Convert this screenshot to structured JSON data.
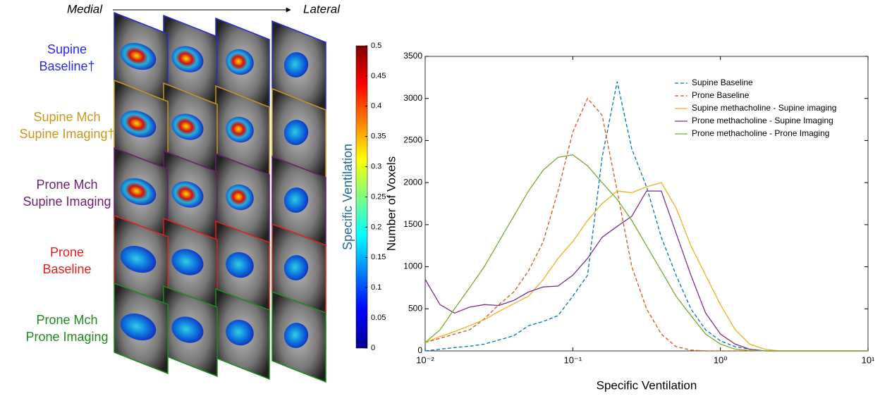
{
  "figure_panel": {
    "axis_start": "Medial",
    "axis_end": "Lateral",
    "rows": [
      {
        "label_lines": [
          "Supine",
          "Baseline†"
        ],
        "color": "#2a2ae0"
      },
      {
        "label_lines": [
          "Supine Mch",
          "Supine Imaging†"
        ],
        "color": "#c9961a"
      },
      {
        "label_lines": [
          "Prone Mch",
          "Supine Imaging"
        ],
        "color": "#6b1f6e"
      },
      {
        "label_lines": [
          "Prone",
          "Baseline"
        ],
        "color": "#e02020"
      },
      {
        "label_lines": [
          "Prone Mch",
          "Prone Imaging"
        ],
        "color": "#1f8a1f"
      }
    ]
  },
  "chart_data": [
    {
      "type": "colorbar",
      "label": "Specific Ventilation",
      "colormap": "jet",
      "ylim": [
        0,
        0.5
      ],
      "yticks": [
        0,
        0.05,
        0.1,
        0.15,
        0.2,
        0.25,
        0.3,
        0.35,
        0.4,
        0.45,
        0.5
      ]
    },
    {
      "type": "line",
      "xlabel": "Specific Ventilation",
      "ylabel": "Number of Voxels",
      "xscale": "log",
      "legend": "top-right",
      "xlim": [
        0.01,
        10
      ],
      "ylim": [
        0,
        3500
      ],
      "xticks": [
        {
          "value": 0.01,
          "label": "10⁻²"
        },
        {
          "value": 0.1,
          "label": "10⁻¹"
        },
        {
          "value": 1,
          "label": "10⁰"
        },
        {
          "value": 10,
          "label": "10¹"
        }
      ],
      "yticks": [
        0,
        500,
        1000,
        1500,
        2000,
        2500,
        3000,
        3500
      ],
      "x": [
        0.01,
        0.0126,
        0.0158,
        0.02,
        0.0251,
        0.0316,
        0.0398,
        0.0501,
        0.0631,
        0.0794,
        0.1,
        0.126,
        0.158,
        0.2,
        0.251,
        0.316,
        0.398,
        0.501,
        0.631,
        0.794,
        1,
        1.26,
        1.58,
        2,
        2.51,
        3.16,
        3.98,
        5.01,
        6.31,
        7.94,
        10
      ],
      "series": [
        {
          "name": "Supine Baseline",
          "color": "#0072bd",
          "dashed": true,
          "values": [
            0,
            20,
            40,
            55,
            80,
            130,
            180,
            300,
            350,
            420,
            650,
            900,
            2300,
            3200,
            2400,
            1950,
            1350,
            900,
            500,
            250,
            120,
            50,
            20,
            0,
            0,
            0,
            0,
            0,
            0,
            0,
            0
          ]
        },
        {
          "name": "Prone Baseline",
          "color": "#d95319",
          "dashed": true,
          "values": [
            100,
            150,
            200,
            250,
            380,
            550,
            700,
            950,
            1300,
            1900,
            2600,
            3000,
            2800,
            1900,
            1000,
            500,
            200,
            50,
            10,
            0,
            0,
            0,
            0,
            0,
            0,
            0,
            0,
            0,
            0,
            0,
            0
          ]
        },
        {
          "name": "Supine methacholine - Supine imaging",
          "color": "#edb120",
          "dashed": false,
          "values": [
            100,
            170,
            230,
            300,
            370,
            470,
            560,
            650,
            850,
            1100,
            1300,
            1550,
            1750,
            1900,
            1880,
            1950,
            2000,
            1700,
            1250,
            900,
            550,
            250,
            80,
            20,
            0,
            0,
            0,
            0,
            0,
            0,
            0
          ]
        },
        {
          "name": "Prone methacholine - Supine Imaging",
          "color": "#7e2f8e",
          "dashed": false,
          "values": [
            850,
            550,
            450,
            520,
            550,
            540,
            600,
            700,
            760,
            770,
            900,
            1100,
            1350,
            1480,
            1600,
            1900,
            1900,
            1400,
            900,
            450,
            200,
            80,
            20,
            0,
            0,
            0,
            0,
            0,
            0,
            0,
            0
          ]
        },
        {
          "name": "Prone methacholine - Prone Imaging",
          "color": "#77ac30",
          "dashed": false,
          "values": [
            100,
            250,
            500,
            750,
            1000,
            1300,
            1600,
            1900,
            2150,
            2300,
            2330,
            2200,
            2000,
            1800,
            1550,
            1250,
            950,
            650,
            420,
            200,
            80,
            20,
            5,
            0,
            0,
            0,
            0,
            0,
            0,
            0,
            0
          ]
        }
      ]
    }
  ]
}
